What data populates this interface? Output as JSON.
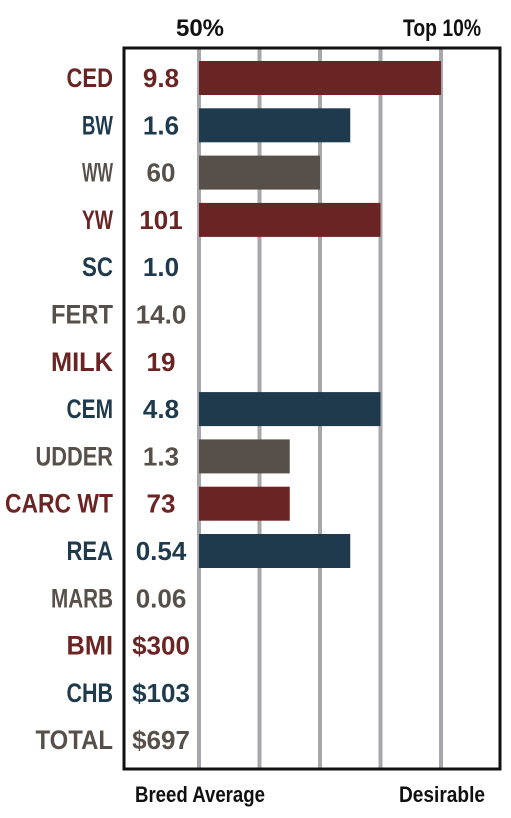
{
  "chart_data": {
    "type": "bar",
    "orientation": "horizontal",
    "top_labels": [
      "50%",
      "Top 10%"
    ],
    "bottom_labels": [
      "Breed Average",
      "Desirable"
    ],
    "scale_divisions": 4,
    "grid": true,
    "categories": [
      "CED",
      "BW",
      "WW",
      "YW",
      "SC",
      "FERT",
      "MILK",
      "CEM",
      "UDDER",
      "CARC WT",
      "REA",
      "MARB",
      "BMI",
      "CHB",
      "TOTAL"
    ],
    "values_text": [
      "9.8",
      "1.6",
      "60",
      "101",
      "1.0",
      "14.0",
      "19",
      "4.8",
      "1.3",
      "73",
      "0.54",
      "0.06",
      "$300",
      "$103",
      "$697"
    ],
    "bar_divisions": [
      4,
      2.5,
      2,
      3,
      0,
      0,
      0,
      3,
      1.5,
      1.5,
      2.5,
      0,
      0,
      0,
      0
    ],
    "row_colors": [
      "#6b2424",
      "#1e3a4c",
      "#57504a",
      "#6b2424",
      "#1e3a4c",
      "#57504a",
      "#6b2424",
      "#1e3a4c",
      "#57504a",
      "#6b2424",
      "#1e3a4c",
      "#57504a",
      "#6b2424",
      "#1e3a4c",
      "#57504a"
    ]
  },
  "colors": {
    "red": "#6b2424",
    "navy": "#1e3a4c",
    "gray": "#57504a",
    "grid": "#a7a7ac",
    "text": "#111111"
  }
}
